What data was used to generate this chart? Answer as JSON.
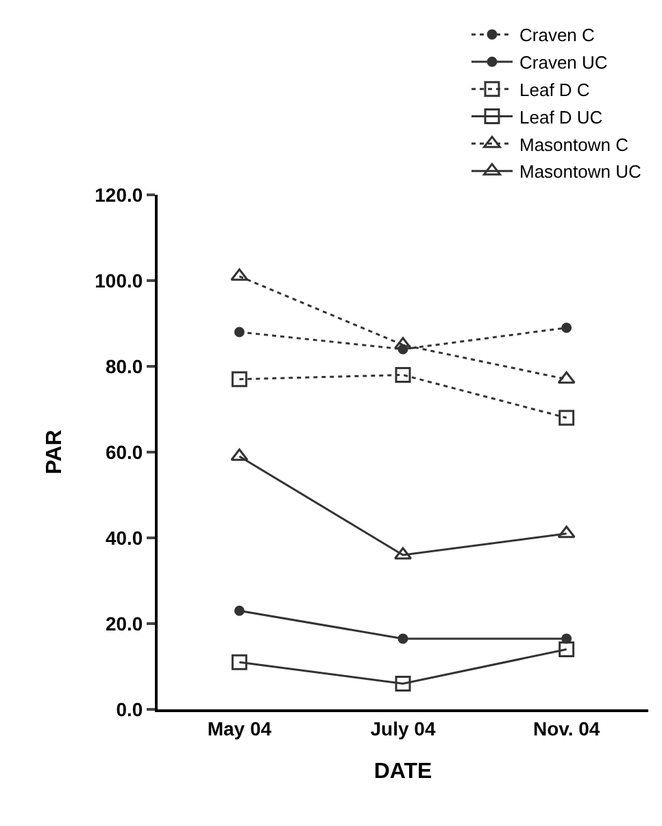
{
  "chart_data": {
    "type": "line",
    "xlabel": "DATE",
    "ylabel": "PAR",
    "categories": [
      "May 04",
      "July 04",
      "Nov. 04"
    ],
    "ylim": [
      0,
      120
    ],
    "yticks": [
      {
        "value": 0,
        "label": "0.0"
      },
      {
        "value": 20,
        "label": "20.0"
      },
      {
        "value": 40,
        "label": "40.0"
      },
      {
        "value": 60,
        "label": "60.0"
      },
      {
        "value": 80,
        "label": "80.0"
      },
      {
        "value": 100,
        "label": "100.0"
      },
      {
        "value": 120,
        "label": "120.0"
      }
    ],
    "grid": false,
    "legend": "top right",
    "series": [
      {
        "name": "Craven C",
        "color": "#333333",
        "marker": "circle",
        "line_style": "dotted",
        "values": [
          88,
          84,
          89
        ]
      },
      {
        "name": "Craven UC",
        "color": "#333333",
        "marker": "circle",
        "line_style": "solid",
        "values": [
          23,
          16.5,
          16.5
        ]
      },
      {
        "name": "Leaf D C",
        "color": "#333333",
        "marker": "square",
        "line_style": "dotted",
        "values": [
          77,
          78,
          68
        ]
      },
      {
        "name": "Leaf D UC",
        "color": "#333333",
        "marker": "square",
        "line_style": "solid",
        "values": [
          11,
          6,
          14
        ]
      },
      {
        "name": "Masontown C",
        "color": "#333333",
        "marker": "triangle",
        "line_style": "dotted",
        "values": [
          101,
          85,
          77
        ]
      },
      {
        "name": "Masontown UC",
        "color": "#333333",
        "marker": "triangle",
        "line_style": "solid",
        "values": [
          59,
          36,
          41
        ]
      }
    ]
  }
}
